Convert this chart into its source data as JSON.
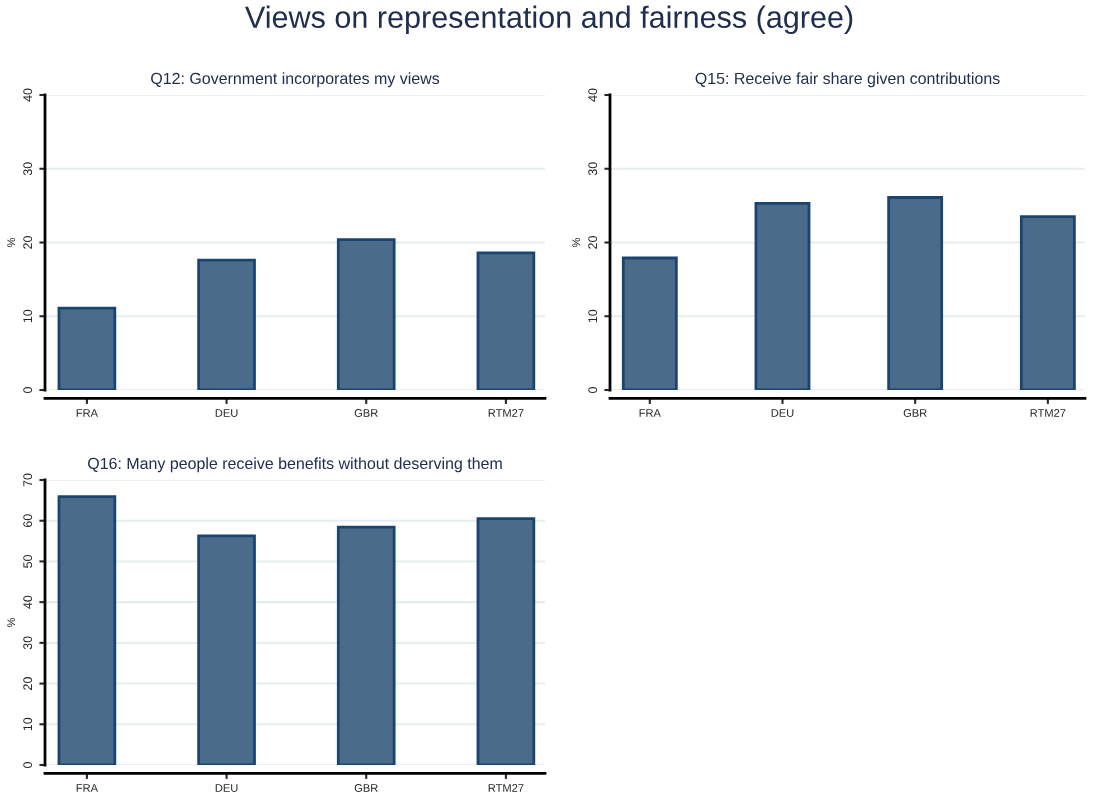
{
  "chart_data": [
    {
      "type": "bar",
      "title": "Q12: Government incorporates my views",
      "annotations": [
        "Views on representation and fairness (agree)"
      ],
      "ylabel": "%",
      "categories": [
        "FRA",
        "DEU",
        "GBR",
        "RTM27"
      ],
      "values": [
        11.1,
        17.6,
        20.4,
        18.6
      ],
      "color": "#4a6b8a",
      "ylim": [
        0,
        40
      ],
      "yticks": [
        0,
        10,
        20,
        30,
        40
      ],
      "grid": "y"
    },
    {
      "type": "bar",
      "title": "Q15: Receive fair share given contributions",
      "ylabel": "%",
      "categories": [
        "FRA",
        "DEU",
        "GBR",
        "RTM27"
      ],
      "values": [
        17.9,
        25.3,
        26.1,
        23.5
      ],
      "color": "#4a6b8a",
      "ylim": [
        0,
        40
      ],
      "yticks": [
        0,
        10,
        20,
        30,
        40
      ],
      "grid": "y"
    },
    {
      "type": "bar",
      "title": "Q16: Many people receive benefits without deserving them",
      "ylabel": "%",
      "categories": [
        "FRA",
        "DEU",
        "GBR",
        "RTM27"
      ],
      "values": [
        65.9,
        56.3,
        58.4,
        60.5
      ],
      "color": "#4a6b8a",
      "ylim": [
        0,
        70
      ],
      "yticks": [
        0,
        10,
        20,
        30,
        40,
        50,
        60,
        70
      ],
      "grid": "y"
    }
  ]
}
